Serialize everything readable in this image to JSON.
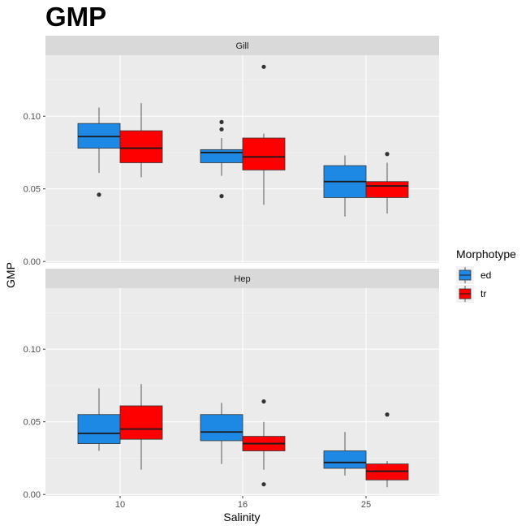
{
  "chart_data": {
    "type": "boxplot",
    "title": "GMP",
    "xlabel": "Salinity",
    "ylabel": "GMP",
    "categories": [
      "10",
      "16",
      "25"
    ],
    "ylim": [
      -0.001,
      0.142
    ],
    "y_ticks": [
      0.0,
      0.05,
      0.1
    ],
    "y_tick_labels": [
      "0.00",
      "0.05",
      "0.10"
    ],
    "grid": true,
    "legend": {
      "title": "Morphotype",
      "position": "right",
      "entries": [
        {
          "name": "ed",
          "color": "#1E88E5"
        },
        {
          "name": "tr",
          "color": "#FF0000"
        }
      ]
    },
    "panels": [
      {
        "label": "Gill",
        "boxes": [
          {
            "category": "10",
            "group": "ed",
            "lower_whisker": 0.061,
            "q1": 0.078,
            "median": 0.086,
            "q3": 0.095,
            "upper_whisker": 0.106,
            "outliers": [
              0.046
            ]
          },
          {
            "category": "10",
            "group": "tr",
            "lower_whisker": 0.058,
            "q1": 0.068,
            "median": 0.078,
            "q3": 0.09,
            "upper_whisker": 0.109,
            "outliers": []
          },
          {
            "category": "16",
            "group": "ed",
            "lower_whisker": 0.059,
            "q1": 0.068,
            "median": 0.075,
            "q3": 0.077,
            "upper_whisker": 0.085,
            "outliers": [
              0.096,
              0.091,
              0.045
            ]
          },
          {
            "category": "16",
            "group": "tr",
            "lower_whisker": 0.039,
            "q1": 0.063,
            "median": 0.072,
            "q3": 0.085,
            "upper_whisker": 0.088,
            "outliers": [
              0.134
            ]
          },
          {
            "category": "25",
            "group": "ed",
            "lower_whisker": 0.031,
            "q1": 0.044,
            "median": 0.055,
            "q3": 0.066,
            "upper_whisker": 0.073,
            "outliers": []
          },
          {
            "category": "25",
            "group": "tr",
            "lower_whisker": 0.033,
            "q1": 0.044,
            "median": 0.052,
            "q3": 0.055,
            "upper_whisker": 0.068,
            "outliers": [
              0.074
            ]
          }
        ]
      },
      {
        "label": "Hep",
        "boxes": [
          {
            "category": "10",
            "group": "ed",
            "lower_whisker": 0.03,
            "q1": 0.035,
            "median": 0.042,
            "q3": 0.055,
            "upper_whisker": 0.073,
            "outliers": []
          },
          {
            "category": "10",
            "group": "tr",
            "lower_whisker": 0.017,
            "q1": 0.038,
            "median": 0.045,
            "q3": 0.061,
            "upper_whisker": 0.076,
            "outliers": []
          },
          {
            "category": "16",
            "group": "ed",
            "lower_whisker": 0.021,
            "q1": 0.037,
            "median": 0.043,
            "q3": 0.055,
            "upper_whisker": 0.063,
            "outliers": []
          },
          {
            "category": "16",
            "group": "tr",
            "lower_whisker": 0.017,
            "q1": 0.03,
            "median": 0.035,
            "q3": 0.04,
            "upper_whisker": 0.05,
            "outliers": [
              0.064,
              0.007
            ]
          },
          {
            "category": "25",
            "group": "ed",
            "lower_whisker": 0.013,
            "q1": 0.018,
            "median": 0.022,
            "q3": 0.03,
            "upper_whisker": 0.043,
            "outliers": []
          },
          {
            "category": "25",
            "group": "tr",
            "lower_whisker": 0.005,
            "q1": 0.01,
            "median": 0.016,
            "q3": 0.021,
            "upper_whisker": 0.023,
            "outliers": [
              0.055
            ]
          }
        ]
      }
    ]
  }
}
